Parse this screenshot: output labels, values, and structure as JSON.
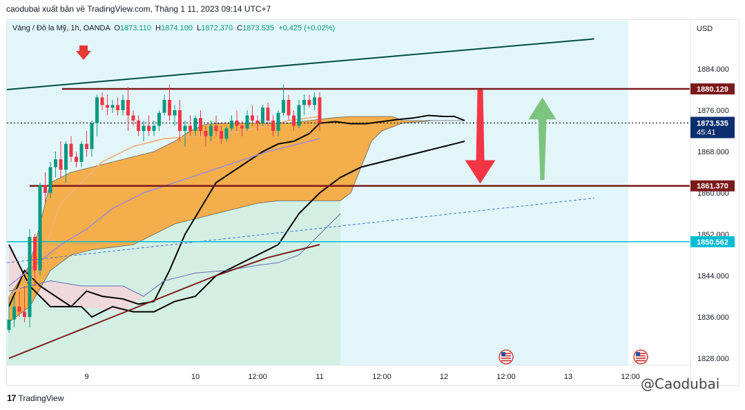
{
  "caption": "caodubai xuất bản về TradingView.com, Tháng 1 11, 2023 09:14 UTC+7",
  "legend": {
    "symbol": "Vàng / Đô la Mỹ, 1h, OANDA",
    "open_label": "O",
    "open": "1873.110",
    "high_label": "H",
    "high": "1874.100",
    "low_label": "L",
    "low": "1872.370",
    "close_label": "C",
    "close": "1873.535",
    "change": "+0.425 (+0.02%)"
  },
  "footer": {
    "brand": "TradingView",
    "mark": "17"
  },
  "watermark": "@Caodubai",
  "colors": {
    "up": "#089981",
    "down": "#f23645",
    "resistance": "#7b1a1a",
    "support_cyan": "#00bcd4",
    "cloud": "#f7a73a",
    "channel": "#004d40",
    "price_tag": "#0d2f6e",
    "arrow_down": "#f23645",
    "arrow_up": "#7cc47f",
    "down_marker": "#e53935",
    "shade": "#d8f3f8"
  },
  "chart_data": {
    "type": "candlestick",
    "currency": "USD",
    "y_ticks": [
      1884,
      1876,
      1868,
      1860,
      1852,
      1844,
      1836,
      1828
    ],
    "y_tick_labels": [
      "1884.000",
      "1876.000",
      "1868.000",
      "1860.000",
      "1852.000",
      "1844.000",
      "1836.000",
      "1828.000"
    ],
    "ylim": [
      1825.5,
      1892.5
    ],
    "x_ticks": [
      {
        "label": "9",
        "bar": 15
      },
      {
        "label": "10",
        "bar": 36
      },
      {
        "label": "12:00",
        "bar": 48
      },
      {
        "label": "11",
        "bar": 60
      },
      {
        "label": "12:00",
        "bar": 72
      },
      {
        "label": "12",
        "bar": 84
      },
      {
        "label": "12:00",
        "bar": 96
      },
      {
        "label": "13",
        "bar": 108
      },
      {
        "label": "12:00",
        "bar": 120
      }
    ],
    "levels": [
      {
        "name": "resistance",
        "price": 1880.129,
        "label": "1880.129"
      },
      {
        "name": "support",
        "price": 1861.37,
        "label": "1861.370"
      },
      {
        "name": "cyan-line",
        "price": 1850.562,
        "label": "1850.562"
      }
    ],
    "current_price": {
      "price": 1873.535,
      "label": "1873.535",
      "countdown": "45:41"
    },
    "candles": [
      [
        1833.5,
        1838.5,
        1833,
        1835.5
      ],
      [
        1835.5,
        1840,
        1834,
        1838
      ],
      [
        1838,
        1841,
        1836,
        1837
      ],
      [
        1837,
        1842,
        1835,
        1836
      ],
      [
        1836,
        1853,
        1834,
        1851.5
      ],
      [
        1851.5,
        1852,
        1842,
        1845
      ],
      [
        1845,
        1862,
        1844,
        1861.5
      ],
      [
        1861.5,
        1864,
        1858,
        1860
      ],
      [
        1860,
        1866,
        1859,
        1865
      ],
      [
        1865,
        1868,
        1863,
        1866.5
      ],
      [
        1866.5,
        1870,
        1863,
        1864.5
      ],
      [
        1864.5,
        1870,
        1862,
        1869.5
      ],
      [
        1869.5,
        1871,
        1866,
        1867
      ],
      [
        1867,
        1868,
        1865,
        1866
      ],
      [
        1866,
        1870,
        1865,
        1869.5
      ],
      [
        1869.5,
        1872,
        1867,
        1868.5
      ],
      [
        1868.5,
        1874,
        1867,
        1873.5
      ],
      [
        1873.5,
        1879,
        1871,
        1878.5
      ],
      [
        1878.5,
        1879.5,
        1876,
        1877
      ],
      [
        1877,
        1879,
        1875,
        1876.5
      ],
      [
        1876.5,
        1878,
        1875.5,
        1877
      ],
      [
        1877,
        1878.5,
        1875,
        1876
      ],
      [
        1876,
        1879,
        1875,
        1878
      ],
      [
        1878,
        1880.5,
        1872,
        1875
      ],
      [
        1875,
        1876,
        1873,
        1874
      ],
      [
        1874,
        1875,
        1871,
        1872
      ],
      [
        1872,
        1874,
        1870,
        1873
      ],
      [
        1873,
        1875,
        1871,
        1872
      ],
      [
        1872,
        1874,
        1871,
        1873
      ],
      [
        1873,
        1876,
        1872,
        1875.5
      ],
      [
        1875.5,
        1879,
        1875,
        1878
      ],
      [
        1878,
        1881,
        1874,
        1875
      ],
      [
        1875,
        1877,
        1873,
        1876
      ],
      [
        1876,
        1878,
        1870,
        1872
      ],
      [
        1872,
        1874,
        1869,
        1873
      ],
      [
        1873,
        1875,
        1871,
        1872
      ],
      [
        1872,
        1875,
        1871,
        1874.5
      ],
      [
        1874.5,
        1876,
        1871,
        1872
      ],
      [
        1872,
        1873,
        1869,
        1871
      ],
      [
        1871,
        1874,
        1870,
        1873
      ],
      [
        1873,
        1875,
        1871,
        1872
      ],
      [
        1872,
        1873,
        1869.5,
        1870.5
      ],
      [
        1870.5,
        1873,
        1870,
        1872.5
      ],
      [
        1872.5,
        1875,
        1872,
        1874
      ],
      [
        1874,
        1876,
        1872,
        1873
      ],
      [
        1873,
        1874,
        1871,
        1872.5
      ],
      [
        1872.5,
        1876,
        1872,
        1875
      ],
      [
        1875,
        1877,
        1873,
        1874
      ],
      [
        1874,
        1875,
        1872,
        1873.5
      ],
      [
        1873.5,
        1877,
        1873,
        1876.5
      ],
      [
        1876.5,
        1877.5,
        1873,
        1874
      ],
      [
        1874,
        1875,
        1871,
        1872
      ],
      [
        1872,
        1876,
        1871,
        1875.5
      ],
      [
        1875.5,
        1881,
        1875,
        1878
      ],
      [
        1878,
        1879,
        1874,
        1875
      ],
      [
        1875,
        1876,
        1872,
        1873
      ],
      [
        1873,
        1878,
        1872.5,
        1877
      ],
      [
        1877,
        1879,
        1875,
        1878
      ],
      [
        1878,
        1879,
        1876.5,
        1877
      ],
      [
        1877,
        1879.5,
        1876,
        1878.5
      ],
      [
        1878.5,
        1879.5,
        1872,
        1873.535
      ]
    ],
    "indicators": {
      "ema_fast": [
        [
          0,
          1840
        ],
        [
          5,
          1844
        ],
        [
          10,
          1858
        ],
        [
          18,
          1866
        ],
        [
          24,
          1869
        ],
        [
          30,
          1870.5
        ],
        [
          36,
          1871
        ],
        [
          42,
          1871.5
        ],
        [
          48,
          1872.5
        ],
        [
          54,
          1874
        ],
        [
          60,
          1874.8
        ]
      ],
      "ema_slow": [
        [
          0,
          1842
        ],
        [
          5,
          1846
        ],
        [
          10,
          1850
        ],
        [
          15,
          1853
        ],
        [
          20,
          1857
        ],
        [
          26,
          1860
        ],
        [
          32,
          1862
        ],
        [
          38,
          1864
        ],
        [
          44,
          1866
        ],
        [
          50,
          1868
        ],
        [
          56,
          1869.5
        ],
        [
          60,
          1870.5
        ]
      ],
      "ema_long": [
        [
          0,
          1828
        ],
        [
          10,
          1832
        ],
        [
          20,
          1836
        ],
        [
          30,
          1840
        ],
        [
          40,
          1844
        ],
        [
          50,
          1847.5
        ],
        [
          60,
          1850
        ]
      ],
      "lagging_line": [
        [
          0,
          1838
        ],
        [
          3,
          1845
        ],
        [
          6,
          1842
        ],
        [
          9,
          1840
        ],
        [
          12,
          1838
        ],
        [
          15,
          1841
        ],
        [
          18,
          1840
        ],
        [
          22,
          1839.5
        ],
        [
          25,
          1838.5
        ],
        [
          28,
          1839
        ],
        [
          31,
          1845
        ],
        [
          34,
          1852
        ],
        [
          37,
          1857
        ],
        [
          40,
          1862
        ],
        [
          43,
          1864
        ],
        [
          46,
          1866
        ],
        [
          49,
          1868
        ],
        [
          52,
          1869.5
        ],
        [
          55,
          1870
        ],
        [
          58,
          1871.5
        ],
        [
          60,
          1873.5
        ],
        [
          63,
          1873.8
        ],
        [
          66,
          1873.4
        ],
        [
          69,
          1873.4
        ],
        [
          72,
          1873.8
        ],
        [
          75,
          1874.2
        ],
        [
          78,
          1874.5
        ],
        [
          81,
          1875
        ],
        [
          84,
          1874.8
        ],
        [
          86,
          1874.8
        ],
        [
          88,
          1874
        ]
      ],
      "cloud_upper": [
        [
          0,
          1840
        ],
        [
          4,
          1846
        ],
        [
          8,
          1862
        ],
        [
          12,
          1864
        ],
        [
          16,
          1865
        ],
        [
          20,
          1866
        ],
        [
          24,
          1867
        ],
        [
          28,
          1868
        ],
        [
          32,
          1870
        ],
        [
          35,
          1872
        ],
        [
          38,
          1873.3
        ],
        [
          42,
          1873.5
        ],
        [
          46,
          1873.5
        ],
        [
          50,
          1873.5
        ],
        [
          54,
          1873.5
        ],
        [
          58,
          1874
        ],
        [
          62,
          1874.5
        ],
        [
          66,
          1874.8
        ],
        [
          70,
          1874.8
        ],
        [
          74,
          1874.8
        ],
        [
          76,
          1874
        ],
        [
          82,
          1874
        ],
        [
          86,
          1874
        ],
        [
          88,
          1874
        ]
      ],
      "cloud_lower": [
        [
          0,
          1835
        ],
        [
          4,
          1838
        ],
        [
          8,
          1845
        ],
        [
          12,
          1848
        ],
        [
          16,
          1849
        ],
        [
          20,
          1849.5
        ],
        [
          24,
          1850
        ],
        [
          28,
          1852
        ],
        [
          32,
          1854
        ],
        [
          36,
          1855
        ],
        [
          40,
          1856
        ],
        [
          44,
          1857
        ],
        [
          48,
          1858
        ],
        [
          52,
          1858.5
        ],
        [
          56,
          1858.5
        ],
        [
          60,
          1858.5
        ],
        [
          64,
          1858.5
        ],
        [
          66,
          1860
        ],
        [
          68,
          1865
        ],
        [
          70,
          1870
        ],
        [
          72,
          1872
        ],
        [
          76,
          1873.5
        ],
        [
          82,
          1874
        ],
        [
          86,
          1874
        ],
        [
          88,
          1874
        ]
      ],
      "lower_boundary": [
        [
          0,
          1841
        ],
        [
          8,
          1843
        ],
        [
          14,
          1842
        ],
        [
          18,
          1842
        ],
        [
          22,
          1842
        ],
        [
          26,
          1840
        ],
        [
          30,
          1843
        ],
        [
          36,
          1844.5
        ],
        [
          42,
          1845
        ],
        [
          48,
          1846
        ],
        [
          52,
          1846.5
        ],
        [
          56,
          1848
        ],
        [
          60,
          1852
        ],
        [
          64,
          1856
        ]
      ],
      "kijun_black": [
        [
          0,
          1850
        ],
        [
          4,
          1842
        ],
        [
          8,
          1838
        ],
        [
          14,
          1838
        ],
        [
          16,
          1836
        ],
        [
          20,
          1838
        ],
        [
          24,
          1837
        ],
        [
          28,
          1837
        ],
        [
          32,
          1839
        ],
        [
          36,
          1840
        ],
        [
          40,
          1844
        ],
        [
          44,
          1846
        ],
        [
          48,
          1848
        ],
        [
          52,
          1850
        ],
        [
          56,
          1856
        ],
        [
          60,
          1860
        ],
        [
          64,
          1863
        ],
        [
          68,
          1865
        ],
        [
          72,
          1866
        ],
        [
          76,
          1867
        ],
        [
          80,
          1868
        ],
        [
          84,
          1869
        ],
        [
          86,
          1869.5
        ],
        [
          88,
          1870
        ]
      ]
    },
    "channel": {
      "start": {
        "bar": -1,
        "price": 1880
      },
      "end": {
        "bar": 113,
        "price": 1889.8
      }
    },
    "dashed_trend": {
      "start": {
        "bar": -1,
        "price": 1846.5
      },
      "end": {
        "bar": 113,
        "price": 1859
      }
    },
    "arrows": [
      {
        "name": "down-arrow",
        "bar": 91,
        "from": 1880,
        "to": 1861.8
      },
      {
        "name": "up-arrow",
        "bar": 103,
        "from": 1862.5,
        "to": 1878.5
      }
    ],
    "event_markers": [
      {
        "bar": 96
      },
      {
        "bar": 122
      }
    ]
  }
}
